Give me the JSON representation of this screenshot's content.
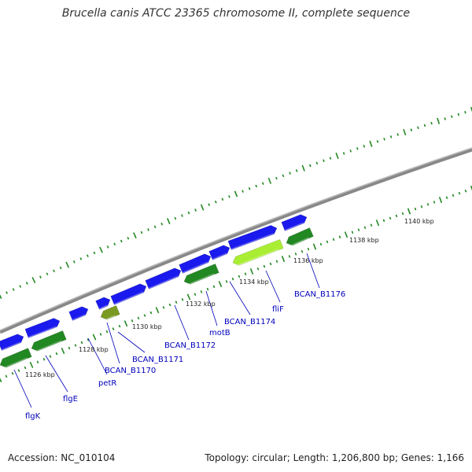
{
  "title": "Brucella canis ATCC 23365 chromosome II, complete sequence",
  "footer": {
    "accession": "Accession: NC_010104",
    "info": "Topology: circular; Length: 1,206,800 bp; Genes: 1,166"
  },
  "colors": {
    "backbone": "#888888",
    "forward_gene": "#1a1aee",
    "reverse_gene": "#228822",
    "reverse_gene_light": "#7a9a22",
    "highlight_gene": "#aaee33",
    "tick": "#228822",
    "label": "#0000bb"
  },
  "scale_labels": [
    "1126 kbp",
    "1128 kbp",
    "1130 kbp",
    "1132 kbp",
    "1134 kbp",
    "1136 kbp",
    "1138 kbp",
    "1140 kbp"
  ],
  "gene_labels": [
    "flgK",
    "flgE",
    "petR",
    "BCAN_B1170",
    "BCAN_B1171",
    "BCAN_B1172",
    "motB",
    "BCAN_B1174",
    "fliF",
    "BCAN_B1176"
  ]
}
